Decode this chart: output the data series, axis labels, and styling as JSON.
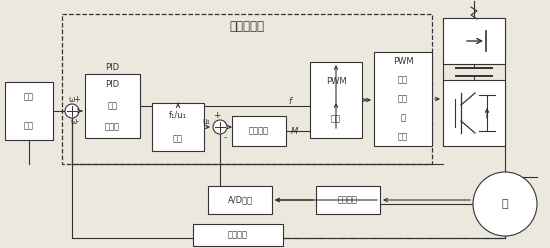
{
  "bg": "#ede8de",
  "lc": "#333333",
  "bc": "#ffffff",
  "fs_small": 6.0,
  "fs_med": 7.0,
  "fs_title": 8.5,
  "title": "单片机系统",
  "speed_ref_lines": [
    "速度",
    "给定"
  ],
  "pid_lines": [
    "PID",
    "速度",
    "调节器"
  ],
  "f1u1_lines": [
    "f₁/u₁",
    "变换"
  ],
  "volt_reg_lines": [
    "电压调节"
  ],
  "pwm_alg_lines": [
    "PWM",
    "算法"
  ],
  "pwm_proc_lines": [
    "PWM",
    "信号",
    "处理",
    "及",
    "放大"
  ],
  "ad_lines": [
    "A/D转换"
  ],
  "vc_lines": [
    "电压变换"
  ],
  "speed_meas_lines": [
    "转速测定"
  ],
  "motor_char": "过"
}
